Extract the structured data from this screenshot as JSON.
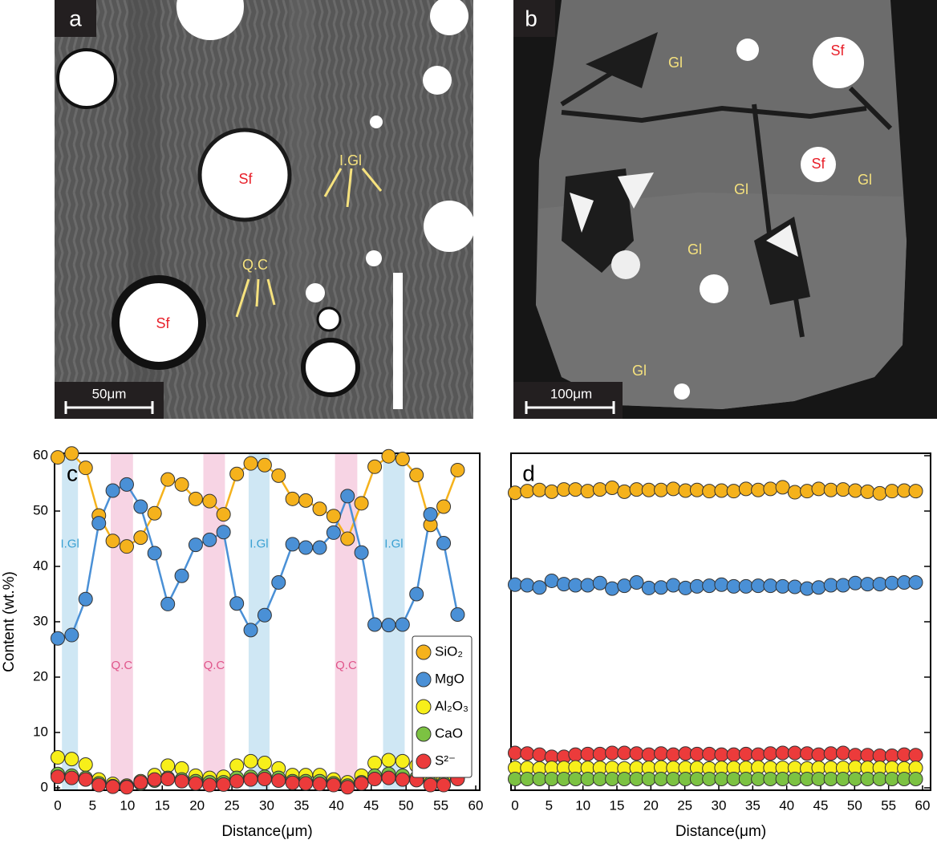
{
  "images": [
    {
      "letter": "a",
      "scale": "50μm",
      "labels": [
        "Sf",
        "Sf",
        "I.Gl",
        "Q.C"
      ]
    },
    {
      "letter": "b",
      "scale": "100μm",
      "labels": [
        "Gl",
        "Sf",
        "Sf",
        "Gl",
        "Gl",
        "Gl",
        "Gl"
      ]
    }
  ],
  "chart_data": [
    {
      "type": "scatter",
      "panel": "c",
      "xlabel": "Distance(μm)",
      "ylabel": "Content (wt.%)",
      "xlim": [
        0,
        60
      ],
      "ylim": [
        0,
        60
      ],
      "xticks": [
        0,
        5,
        10,
        15,
        20,
        25,
        30,
        35,
        40,
        45,
        50,
        55,
        60
      ],
      "yticks": [
        0,
        10,
        20,
        30,
        40,
        50,
        60
      ],
      "ytick_labels": true,
      "legend": "lower right",
      "bands": [
        {
          "from": 0.6,
          "to": 2.9,
          "label": "I.Gl",
          "color": "#cfe7f4",
          "text_color": "#3aa0d2",
          "label_y": 44
        },
        {
          "from": 7.6,
          "to": 10.8,
          "label": "Q.C",
          "color": "#f7d4e4",
          "text_color": "#e0568b",
          "label_y": 22
        },
        {
          "from": 20.9,
          "to": 24.0,
          "label": "Q.C",
          "color": "#f7d4e4",
          "text_color": "#e0568b",
          "label_y": 22
        },
        {
          "from": 27.4,
          "to": 30.4,
          "label": "I.Gl",
          "color": "#cfe7f4",
          "text_color": "#3aa0d2",
          "label_y": 44
        },
        {
          "from": 39.8,
          "to": 43.0,
          "label": "Q.C",
          "color": "#f7d4e4",
          "text_color": "#e0568b",
          "label_y": 22
        },
        {
          "from": 46.7,
          "to": 49.8,
          "label": "I.Gl",
          "color": "#cfe7f4",
          "text_color": "#3aa0d2",
          "label_y": 44
        }
      ],
      "x": [
        0,
        2.0,
        4.0,
        5.9,
        7.9,
        9.9,
        11.9,
        13.9,
        15.8,
        17.8,
        19.8,
        21.8,
        23.8,
        25.7,
        27.7,
        29.7,
        31.7,
        33.7,
        35.6,
        37.6,
        39.6,
        41.6,
        43.6,
        45.5,
        47.5,
        49.5,
        51.5,
        53.5,
        55.4,
        57.4
      ],
      "series": [
        {
          "name": "SiO₂",
          "color": "#f5b21c",
          "line": "#f5b21c",
          "values": [
            59.7,
            60.4,
            57.8,
            49.2,
            44.6,
            43.6,
            45.2,
            49.6,
            55.7,
            54.8,
            52.2,
            51.8,
            49.4,
            56.7,
            58.6,
            58.3,
            56.4,
            52.2,
            51.9,
            50.4,
            49.1,
            45.0,
            51.4,
            58.0,
            59.9,
            59.4,
            56.5,
            47.5,
            50.8,
            57.4
          ]
        },
        {
          "name": "MgO",
          "color": "#4a90d6",
          "line": "#4a90d6",
          "values": [
            27.0,
            27.6,
            34.1,
            47.8,
            53.7,
            54.8,
            50.8,
            42.4,
            33.2,
            38.3,
            43.9,
            44.8,
            46.2,
            33.3,
            28.5,
            31.2,
            37.1,
            44.0,
            43.4,
            43.4,
            46.1,
            52.7,
            42.5,
            29.5,
            29.4,
            29.5,
            35.0,
            49.4,
            44.2,
            31.3
          ]
        },
        {
          "name": "Al₂O₃",
          "color": "#f7ef1a",
          "values": [
            5.5,
            5.2,
            4.2,
            1.5,
            0.7,
            0.4,
            1.2,
            2.3,
            4.0,
            3.5,
            2.2,
            1.8,
            2.0,
            4.0,
            4.8,
            4.5,
            3.5,
            2.3,
            2.3,
            2.3,
            1.5,
            1.0,
            2.2,
            4.5,
            5.0,
            4.8,
            4.0,
            1.5,
            1.8,
            4.5
          ]
        },
        {
          "name": "CaO",
          "color": "#7cc242",
          "values": [
            2.5,
            2.2,
            1.8,
            0.8,
            0.3,
            0.2,
            0.8,
            1.3,
            1.8,
            1.5,
            1.2,
            1.0,
            1.0,
            1.8,
            2.0,
            2.0,
            1.8,
            1.2,
            1.2,
            1.2,
            0.8,
            0.4,
            1.0,
            2.2,
            2.5,
            2.2,
            1.8,
            0.8,
            0.8,
            1.8
          ]
        },
        {
          "name": "S²⁻",
          "color": "#ec3b3b",
          "values": [
            2.0,
            1.8,
            1.5,
            0.5,
            0.2,
            0.1,
            1.0,
            1.5,
            1.6,
            1.2,
            0.8,
            0.5,
            0.6,
            1.2,
            1.5,
            1.6,
            1.3,
            0.9,
            0.8,
            0.7,
            0.5,
            0.1,
            0.8,
            1.6,
            1.8,
            1.5,
            1.4,
            0.5,
            0.5,
            1.6
          ]
        }
      ]
    },
    {
      "type": "scatter",
      "panel": "d",
      "xlabel": "Distance(μm)",
      "xlim": [
        0,
        60
      ],
      "ylim": [
        0,
        60
      ],
      "xticks": [
        0,
        5,
        10,
        15,
        20,
        25,
        30,
        35,
        40,
        45,
        50,
        55,
        60
      ],
      "yticks": [
        0,
        10,
        20,
        30,
        40,
        50,
        60
      ],
      "ytick_labels": false,
      "x": [
        0,
        1.8,
        3.6,
        5.4,
        7.2,
        8.9,
        10.7,
        12.5,
        14.3,
        16.1,
        17.9,
        19.7,
        21.5,
        23.3,
        25.1,
        26.8,
        28.6,
        30.4,
        32.2,
        34.0,
        35.8,
        37.6,
        39.4,
        41.2,
        43.0,
        44.7,
        46.5,
        48.3,
        50.1,
        51.9,
        53.7,
        55.5,
        57.3,
        59.0
      ],
      "series": [
        {
          "color": "#f5b21c",
          "values": [
            53.3,
            53.6,
            53.8,
            53.5,
            53.9,
            53.9,
            53.6,
            53.9,
            54.2,
            53.5,
            53.9,
            53.8,
            53.8,
            54.0,
            53.7,
            53.8,
            53.6,
            53.7,
            53.6,
            54.0,
            53.8,
            54.0,
            54.3,
            53.4,
            53.6,
            54.0,
            53.8,
            53.9,
            53.7,
            53.5,
            53.2,
            53.6,
            53.7,
            53.6
          ]
        },
        {
          "color": "#4a90d6",
          "values": [
            36.7,
            36.6,
            36.2,
            37.4,
            36.8,
            36.6,
            36.6,
            37.0,
            36.0,
            36.5,
            37.1,
            36.1,
            36.2,
            36.6,
            36.1,
            36.4,
            36.5,
            36.7,
            36.4,
            36.4,
            36.5,
            36.5,
            36.4,
            36.3,
            36.0,
            36.2,
            36.6,
            36.6,
            37.0,
            36.8,
            36.8,
            37.0,
            37.1,
            37.1
          ]
        },
        {
          "color": "#ec3b3b",
          "values": [
            6.3,
            6.2,
            6.0,
            5.6,
            5.6,
            6.0,
            6.1,
            6.1,
            6.3,
            6.3,
            6.2,
            6.0,
            6.2,
            6.0,
            6.2,
            6.1,
            6.1,
            6.0,
            6.0,
            6.1,
            6.0,
            6.2,
            6.3,
            6.3,
            6.2,
            6.0,
            6.2,
            6.3,
            5.9,
            5.9,
            5.8,
            5.8,
            6.0,
            5.9
          ]
        },
        {
          "color": "#f7ef1a",
          "values": [
            3.6,
            3.6,
            3.5,
            3.6,
            3.6,
            3.7,
            3.6,
            3.6,
            3.6,
            3.5,
            3.6,
            3.6,
            3.7,
            3.6,
            3.6,
            3.6,
            3.5,
            3.6,
            3.6,
            3.6,
            3.7,
            3.6,
            3.6,
            3.6,
            3.5,
            3.6,
            3.6,
            3.6,
            3.7,
            3.6,
            3.6,
            3.6,
            3.5,
            3.6
          ]
        },
        {
          "color": "#7cc242",
          "values": [
            1.6,
            1.6,
            1.6,
            1.6,
            1.6,
            1.6,
            1.6,
            1.6,
            1.6,
            1.6,
            1.6,
            1.6,
            1.6,
            1.6,
            1.6,
            1.6,
            1.6,
            1.6,
            1.6,
            1.6,
            1.6,
            1.6,
            1.6,
            1.6,
            1.6,
            1.6,
            1.6,
            1.6,
            1.6,
            1.6,
            1.6,
            1.6,
            1.6,
            1.6
          ]
        }
      ]
    }
  ]
}
